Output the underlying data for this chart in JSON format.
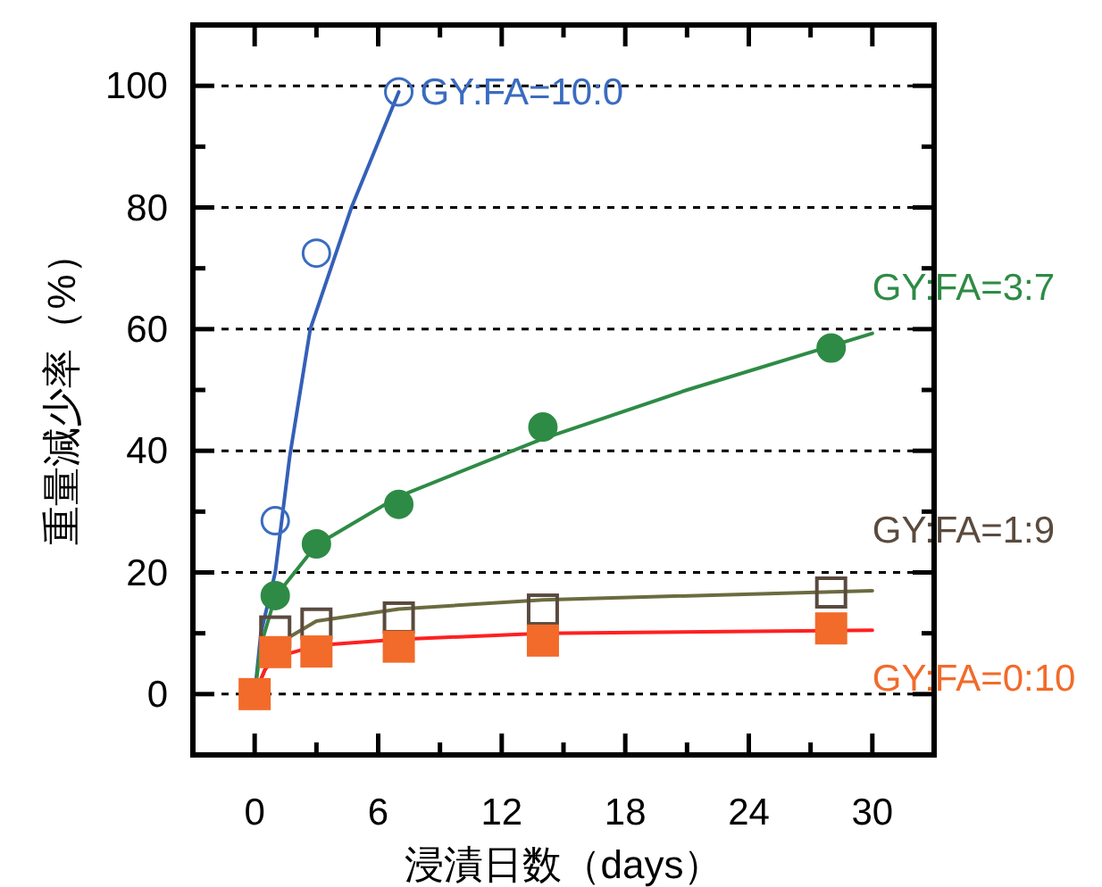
{
  "chart_data": {
    "type": "scatter",
    "xlabel": "浸漬日数（days）",
    "ylabel": "重量減少率（%）",
    "xlim": [
      -3,
      33
    ],
    "xticks": [
      0,
      {
        "value": 3,
        "label": null
      },
      6,
      {
        "value": 9,
        "label": null
      },
      12,
      {
        "value": 15,
        "label": null
      },
      18,
      {
        "value": 21,
        "label": null
      },
      24,
      {
        "value": 27,
        "label": null
      },
      30
    ],
    "ylim": [
      -10,
      110
    ],
    "yticks": [
      0,
      {
        "value": 10,
        "label": null
      },
      20,
      {
        "value": 30,
        "label": null
      },
      40,
      {
        "value": 50,
        "label": null
      },
      60,
      {
        "value": 70,
        "label": null
      },
      80,
      {
        "value": 90,
        "label": null
      },
      100
    ],
    "grid": "y",
    "legend": false,
    "series": [
      {
        "type": "line",
        "color": "#3560b8",
        "marker": "none",
        "x": [
          0,
          0.3,
          1,
          1.7,
          2.7,
          4.7,
          7
        ],
        "values": [
          0,
          10,
          20,
          39,
          60,
          80,
          99
        ]
      },
      {
        "type": "line",
        "color": "#2e8b45",
        "marker": "none",
        "x": [
          0,
          0.3,
          1,
          3,
          7,
          14,
          21,
          30
        ],
        "values": [
          0,
          8,
          16,
          24.5,
          32.5,
          42,
          50,
          59.3
        ]
      },
      {
        "type": "line",
        "color": "#6b6b40",
        "marker": "none",
        "x": [
          0,
          1,
          3,
          7,
          14,
          30
        ],
        "values": [
          0,
          8,
          12,
          14,
          15.5,
          17
        ]
      },
      {
        "type": "line",
        "color": "#ff2020",
        "marker": "none",
        "x": [
          0,
          0.5,
          1,
          3,
          7,
          14,
          30
        ],
        "values": [
          0,
          4,
          6,
          8,
          9,
          10,
          10.5
        ]
      },
      {
        "name": "GY:FA=10:0",
        "color": "#3a6cc0",
        "marker": "circle",
        "x": [
          1,
          3,
          7
        ],
        "values": [
          28.5,
          72.5,
          99
        ]
      },
      {
        "name": "GY:FA=3:7",
        "color": "#2e8b45",
        "marker": "circle",
        "x": [
          1,
          3,
          7,
          14,
          28
        ],
        "values": [
          16.2,
          24.7,
          31.2,
          43.9,
          56.9
        ]
      },
      {
        "name": "GY:FA=1:9",
        "color": "#5a4a3e",
        "marker": "square",
        "x": [
          1,
          3,
          7,
          14,
          28
        ],
        "values": [
          10.3,
          11.6,
          12.6,
          13.9,
          16.7
        ]
      },
      {
        "name": "GY:FA=0:10",
        "color": "#f26b2a",
        "marker": "square",
        "x": [
          0,
          1,
          3,
          7,
          14,
          28
        ],
        "values": [
          0,
          6.9,
          7.0,
          7.8,
          8.8,
          10.8
        ]
      }
    ]
  }
}
